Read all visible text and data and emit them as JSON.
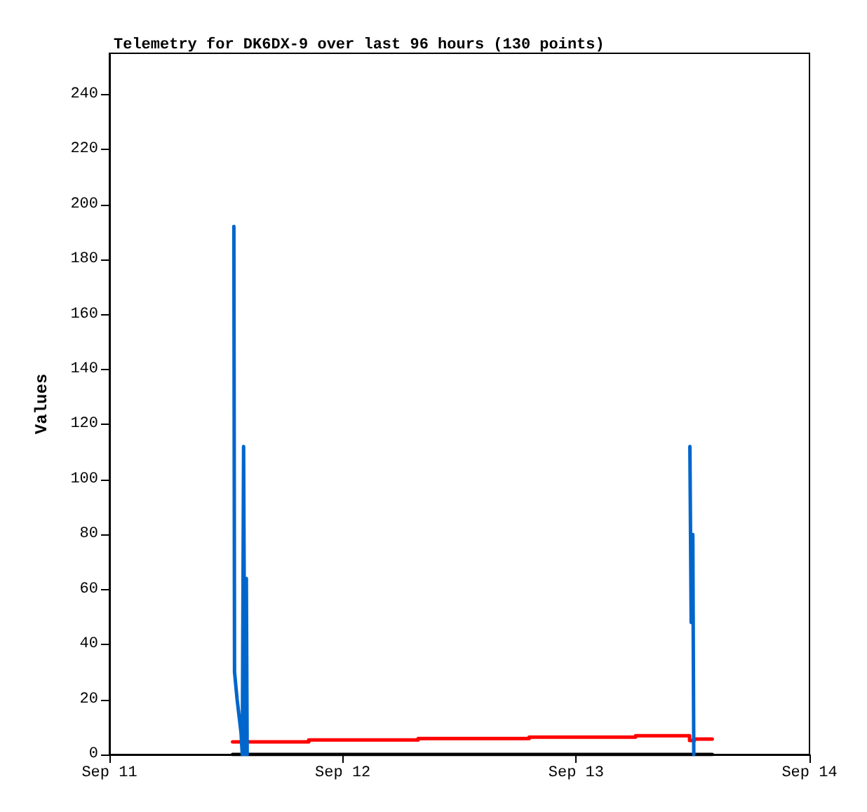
{
  "chart_data": {
    "type": "line",
    "title": "Telemetry for DK6DX-9 over last 96 hours (130 points)",
    "ylabel": "Values",
    "xlim": [
      "--09-11",
      "--09-14"
    ],
    "xticks": [
      {
        "value": "--09-11",
        "label": "Sep 11"
      },
      {
        "value": "--09-12",
        "label": "Sep 12"
      },
      {
        "value": "--09-13",
        "label": "Sep 13"
      },
      {
        "value": "--09-14",
        "label": "Sep 14"
      }
    ],
    "ylim": [
      0,
      255
    ],
    "yticks": [
      0,
      20,
      40,
      60,
      80,
      100,
      120,
      140,
      160,
      180,
      200,
      220,
      240
    ],
    "series": [
      {
        "type": "step",
        "color": "#ff0000",
        "x": [
          "--09-11T12:40",
          "--09-11T20:30",
          "--09-12T07:45",
          "--09-12T19:10",
          "--09-13T06:07",
          "--09-13T11:40",
          "--09-13T12:10",
          "--09-13T14:00"
        ],
        "values": [
          4.6,
          5.3,
          5.8,
          6.3,
          6.8,
          5.1,
          5.6,
          5.6
        ]
      },
      {
        "color": "#000000",
        "x": [
          "--09-11T12:40",
          "--09-13T14:00"
        ],
        "values": [
          0,
          0
        ]
      },
      {
        "color": "#0066cc",
        "x": [
          "--09-11T12:48",
          "--09-11T12:52",
          "--09-11T13:00",
          "--09-11T13:08",
          "--09-11T13:16",
          "--09-11T13:24",
          "--09-11T13:32",
          "--09-11T13:40",
          "--09-11T13:48",
          "--09-11T13:56",
          "--09-11T14:05",
          "--09-11T14:10",
          "--09-13T11:36",
          "--09-13T11:42",
          "--09-13T11:50",
          "--09-13T12:00",
          "--09-13T12:06"
        ],
        "values": [
          192,
          30,
          25,
          20,
          16,
          12,
          8,
          0,
          112,
          0,
          64,
          0,
          null,
          112,
          48,
          80,
          0
        ]
      }
    ]
  }
}
